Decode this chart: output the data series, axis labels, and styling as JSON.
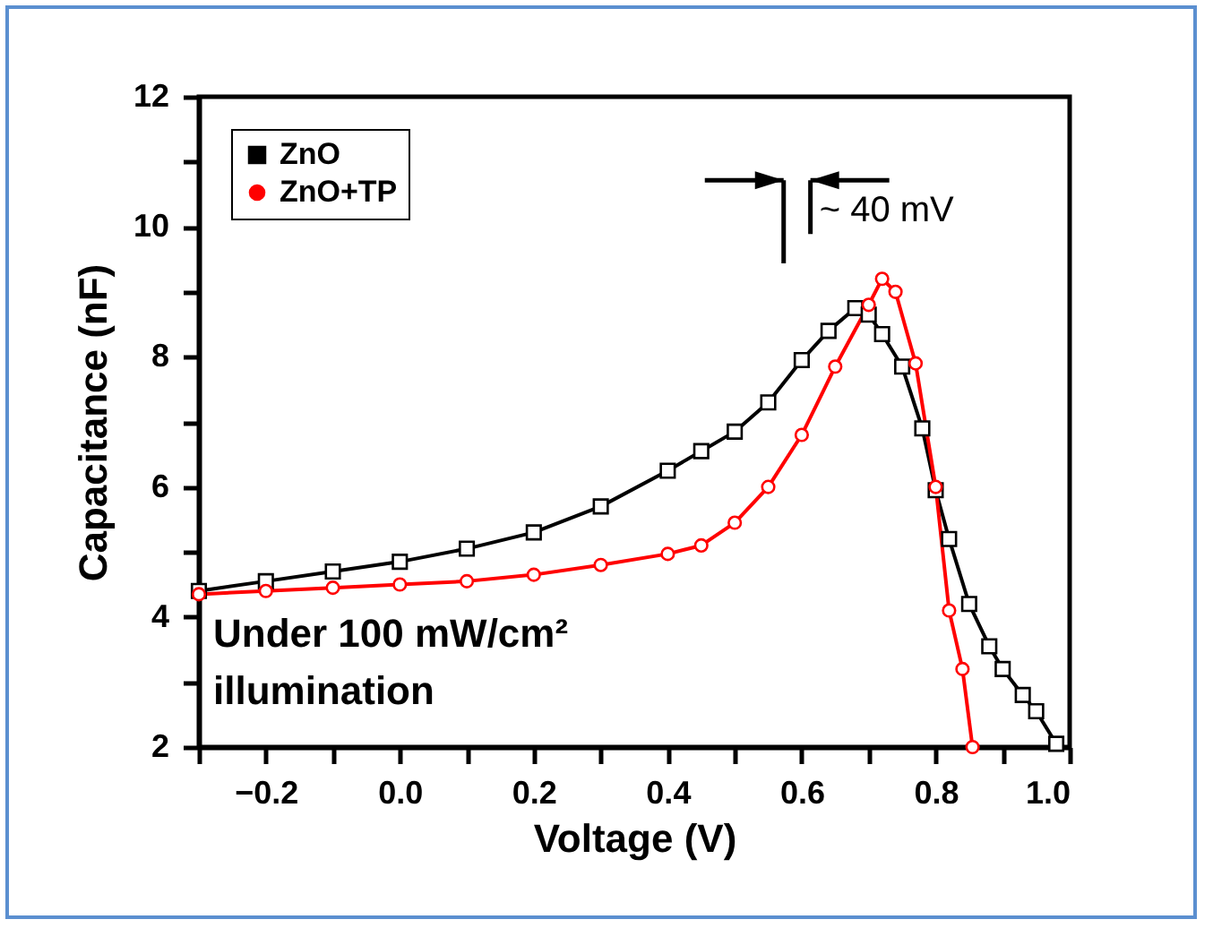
{
  "chart_data": {
    "type": "line",
    "xlabel": "Voltage (V)",
    "ylabel": "Capacitance (nF)",
    "xlim": [
      -0.3,
      1.0
    ],
    "xticks": [
      {
        "value": -0.3,
        "label": null
      },
      -0.2,
      {
        "value": -0.1,
        "label": null
      },
      {
        "value": 0,
        "label": "0.0"
      },
      {
        "value": 0.1,
        "label": null
      },
      0.2,
      {
        "value": 0.3,
        "label": null
      },
      0.4,
      {
        "value": 0.5,
        "label": null
      },
      0.6,
      {
        "value": 0.7,
        "label": null
      },
      0.8,
      {
        "value": 0.9,
        "label": null
      },
      {
        "value": 1,
        "label": "1.0"
      }
    ],
    "ylim": [
      2,
      12
    ],
    "yticks": [
      2,
      {
        "value": 3,
        "label": null
      },
      4,
      {
        "value": 5,
        "label": null
      },
      6,
      {
        "value": 7,
        "label": null
      },
      8,
      {
        "value": 9,
        "label": null
      },
      10,
      {
        "value": 11,
        "label": null
      },
      12
    ],
    "grid": false,
    "legend": "top left",
    "line_style": "solid",
    "series": [
      {
        "name": "ZnO",
        "color": "#000000",
        "marker": "square",
        "x": [
          -0.3,
          -0.2,
          -0.1,
          0,
          0.1,
          0.2,
          0.3,
          0.4,
          0.45,
          0.5,
          0.55,
          0.6,
          0.64,
          0.68,
          0.7,
          0.72,
          0.75,
          0.78,
          0.8,
          0.82,
          0.85,
          0.88,
          0.9,
          0.93,
          0.95,
          0.98
        ],
        "values": [
          4.4,
          4.55,
          4.7,
          4.85,
          5.05,
          5.3,
          5.7,
          6.25,
          6.55,
          6.85,
          7.3,
          7.95,
          8.4,
          8.75,
          8.65,
          8.35,
          7.85,
          6.9,
          5.95,
          5.2,
          4.2,
          3.55,
          3.2,
          2.8,
          2.55,
          2.05
        ]
      },
      {
        "name": "ZnO+TP",
        "color": "#ff0000",
        "marker": "circle",
        "x": [
          -0.3,
          -0.2,
          -0.1,
          0,
          0.1,
          0.2,
          0.3,
          0.4,
          0.45,
          0.5,
          0.55,
          0.6,
          0.65,
          0.7,
          0.72,
          0.74,
          0.77,
          0.8,
          0.82,
          0.84,
          0.855
        ],
        "values": [
          4.35,
          4.4,
          4.45,
          4.5,
          4.55,
          4.65,
          4.8,
          4.97,
          5.1,
          5.45,
          6.0,
          6.8,
          7.85,
          8.8,
          9.2,
          9.0,
          7.9,
          6.0,
          4.1,
          3.2,
          2.0
        ]
      }
    ],
    "annotations": [
      "~ 40 mV",
      "Under 100 mW/cm² illumination"
    ]
  }
}
